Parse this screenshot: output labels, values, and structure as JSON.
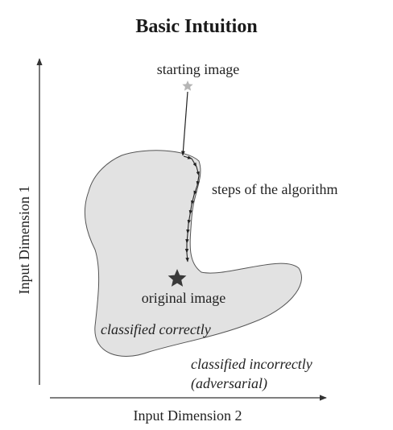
{
  "title": "Basic Intuition",
  "axes": {
    "y_label": "Input Dimension 1",
    "x_label": "Input Dimension 2"
  },
  "labels": {
    "starting_image": "starting image",
    "steps": "steps of the algorithm",
    "original_image": "original image",
    "classified_correctly": "classified correctly",
    "classified_incorrectly_line1": "classified incorrectly",
    "classified_incorrectly_line2": "(adversarial)"
  },
  "colors": {
    "region_fill": "#e2e2e2",
    "region_stroke": "#555555",
    "starting_star": "#b5b5b5",
    "original_star": "#3a3a3a",
    "path": "#222222"
  },
  "icons": {
    "starting_marker": "star-icon",
    "original_marker": "star-icon"
  }
}
